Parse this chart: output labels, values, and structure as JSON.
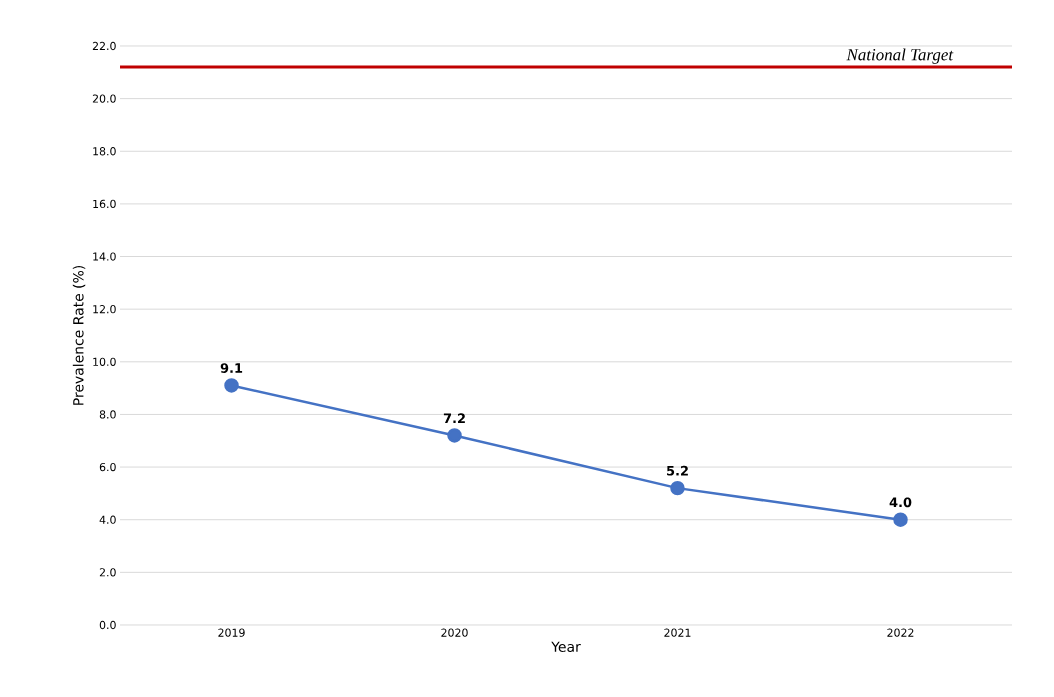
{
  "chart_data": {
    "type": "line",
    "xlabel": "Year",
    "ylabel": "Prevalence Rate (%)",
    "categories": [
      "2019",
      "2020",
      "2021",
      "2022"
    ],
    "values": [
      9.1,
      7.2,
      5.2,
      4.0
    ],
    "color": "#4472c4",
    "marker": "circle",
    "value_labels": [
      "9.1",
      "7.2",
      "5.2",
      "4.0"
    ],
    "grid": "y",
    "ylim": [
      0,
      22
    ],
    "yticks": [
      {
        "value": 0,
        "label": "0.0"
      },
      {
        "value": 2,
        "label": "2.0"
      },
      {
        "value": 4,
        "label": "4.0"
      },
      {
        "value": 6,
        "label": "6.0"
      },
      {
        "value": 8,
        "label": "8.0"
      },
      {
        "value": 10,
        "label": "10.0"
      },
      {
        "value": 12,
        "label": "12.0"
      },
      {
        "value": 14,
        "label": "14.0"
      },
      {
        "value": 16,
        "label": "16.0"
      },
      {
        "value": 18,
        "label": "18.0"
      },
      {
        "value": 20,
        "label": "20.0"
      },
      {
        "value": 22,
        "label": "22.0"
      }
    ],
    "ref_lines": [
      {
        "axis": "y",
        "value": 21.2,
        "label": "National Target",
        "color": "#c00000"
      }
    ]
  }
}
